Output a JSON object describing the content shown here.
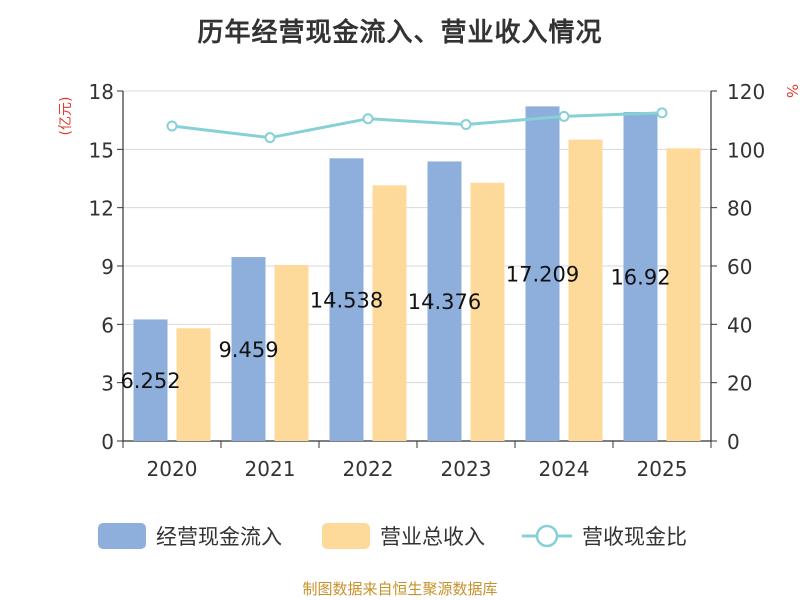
{
  "title": "历年经营现金流入、营业收入情况",
  "source": "制图数据来自恒生聚源数据库",
  "chart_data": {
    "type": "bar",
    "categories": [
      "2020",
      "2021",
      "2022",
      "2023",
      "2024",
      "2025"
    ],
    "series": [
      {
        "name": "经营现金流入",
        "kind": "bar",
        "axis": "left",
        "color": "#8eaedc",
        "values": [
          6.252,
          9.459,
          14.538,
          14.376,
          17.209,
          16.92
        ],
        "labels": [
          "6.252",
          "9.459",
          "14.538",
          "14.376",
          "17.209",
          "16.92"
        ]
      },
      {
        "name": "营业总收入",
        "kind": "bar",
        "axis": "left",
        "color": "#fdd99a",
        "values": [
          5.8,
          9.05,
          13.15,
          13.28,
          15.5,
          15.05
        ]
      },
      {
        "name": "营收现金比",
        "kind": "line",
        "axis": "right",
        "color": "#86d1d6",
        "values": [
          108,
          104,
          110.5,
          108.5,
          111.3,
          112.5
        ]
      }
    ],
    "y_left": {
      "label": "(亿元)",
      "min": 0,
      "max": 18,
      "ticks": [
        "0",
        "3",
        "6",
        "9",
        "12",
        "15",
        "18"
      ]
    },
    "y_right": {
      "label": "%",
      "min": 0,
      "max": 120,
      "ticks": [
        "0",
        "20",
        "40",
        "60",
        "80",
        "100",
        "120"
      ]
    },
    "legend_position": "bottom",
    "grid": true
  }
}
